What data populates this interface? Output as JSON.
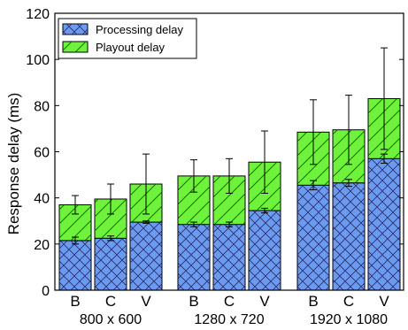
{
  "chart_data": {
    "type": "bar",
    "stacked": true,
    "title": "",
    "xlabel": "",
    "ylabel": "Response delay (ms)",
    "ylim": [
      0,
      120
    ],
    "yticks": [
      0,
      20,
      40,
      60,
      80,
      100,
      120
    ],
    "grid": false,
    "legend_position": "top-left",
    "groups": [
      {
        "label": "800 x 600",
        "categories": [
          "B",
          "C",
          "V"
        ]
      },
      {
        "label": "1280 x 720",
        "categories": [
          "B",
          "C",
          "V"
        ]
      },
      {
        "label": "1920 x 1080",
        "categories": [
          "B",
          "C",
          "V"
        ]
      }
    ],
    "series": [
      {
        "name": "Processing delay",
        "color": "#6b9bef",
        "pattern": "crosshatch",
        "values": [
          21.5,
          22.5,
          29.5,
          28.5,
          28.5,
          34.5,
          45.5,
          46.5,
          57
        ],
        "error": [
          1.5,
          1,
          0.5,
          1,
          1,
          1,
          2,
          1.5,
          2
        ]
      },
      {
        "name": "Playout delay",
        "color": "#6ef23b",
        "pattern": "diagonal",
        "values": [
          15.5,
          17,
          16.5,
          21,
          21,
          21,
          23,
          23,
          26
        ],
        "error": [
          4,
          6.5,
          13,
          7,
          7.5,
          13.5,
          14,
          15,
          22
        ]
      }
    ]
  }
}
